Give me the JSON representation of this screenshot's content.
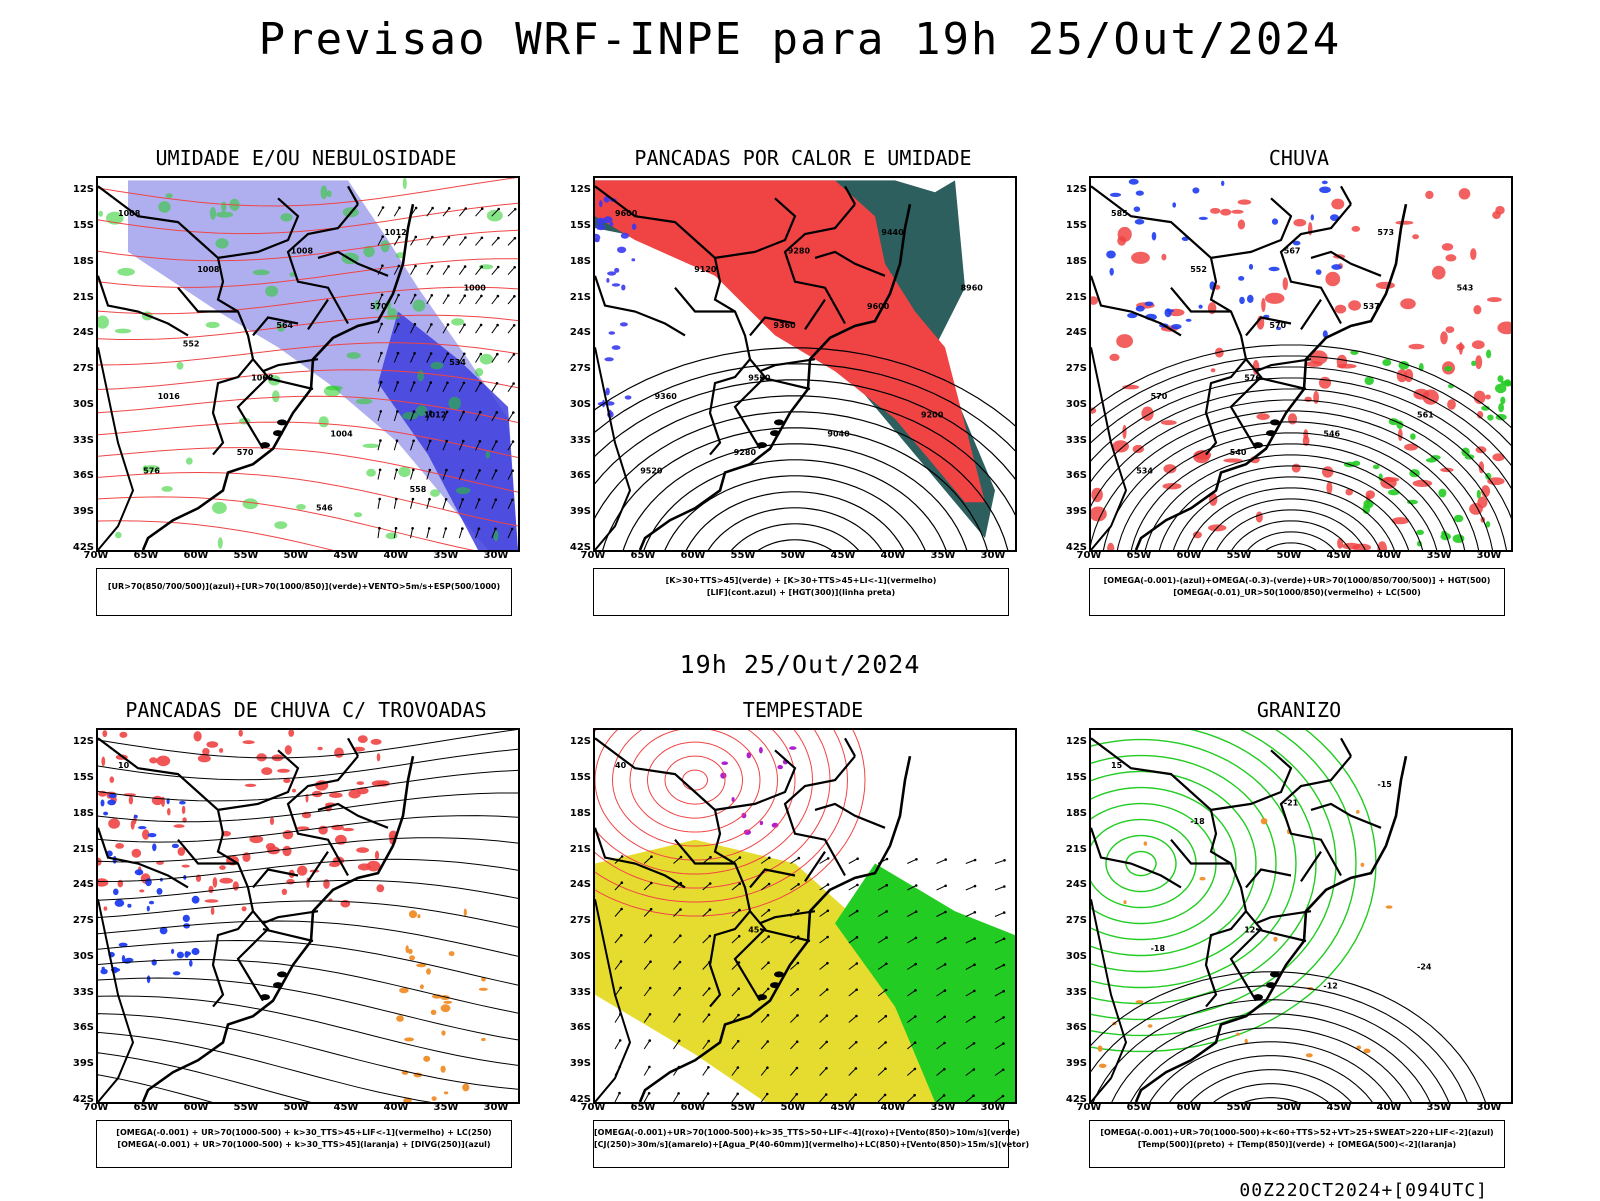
{
  "main_title": "Previsao WRF-INPE  para 19h 25/Out/2024",
  "mid_time": "19h 25/Out/2024",
  "footer": "00Z22OCT2024+[094UTC]",
  "axes": {
    "lat_labels": [
      "12S",
      "15S",
      "18S",
      "21S",
      "24S",
      "27S",
      "30S",
      "33S",
      "36S",
      "39S",
      "42S"
    ],
    "lon_labels": [
      "70W",
      "65W",
      "60W",
      "55W",
      "50W",
      "45W",
      "40W",
      "35W",
      "30W"
    ]
  },
  "panels": [
    {
      "title": "UMIDADE E/OU NEBULOSIDADE",
      "legend_lines": [
        "[UR>70(850/700/500)](azul)+[UR>70(1000/850)](verde)+VENTO>5m/s+ESP(500/1000)"
      ],
      "contour_labels": [
        "1008",
        "1008",
        "1012",
        "1016",
        "1008",
        "1012",
        "1008",
        "1004",
        "1000",
        "570",
        "570",
        "576",
        "564",
        "558",
        "552",
        "546",
        "534"
      ]
    },
    {
      "title": "PANCADAS POR CALOR E UMIDADE",
      "legend_lines": [
        "[K>30+TTS>45](verde) + [K>30+TTS>45+LI<-1](vermelho)",
        "[LIF](cont.azul) + [HGT(300)](linha preta)"
      ],
      "contour_labels": [
        "9600",
        "9520",
        "9440",
        "9360",
        "9280",
        "9200",
        "9120",
        "9040",
        "8960",
        "9280",
        "9600",
        "9520",
        "9360"
      ]
    },
    {
      "title": "CHUVA",
      "legend_lines": [
        "[OMEGA(-0.001)-(azul)+OMEGA(-0.3)-(verde)+UR>70(1000/850/700/500)] + HGT(500)",
        "[OMEGA(-0.01)_UR>50(1000/850)(vermelho) + LC(500)"
      ],
      "contour_labels": [
        "585",
        "576",
        "573",
        "570",
        "567",
        "561",
        "552",
        "546",
        "543",
        "540",
        "537",
        "534",
        "570"
      ]
    },
    {
      "title": "PANCADAS DE CHUVA C/ TROVOADAS",
      "legend_lines": [
        "[OMEGA(-0.001) + UR>70(1000-500) + k>30_TTS>45+LIF<-1](vermelho) + LC(250)",
        "[OMEGA(-0.001) + UR>70(1000-500) + k>30_TTS>45](laranja) + [DIVG(250)](azul)"
      ],
      "contour_labels": [
        "10"
      ]
    },
    {
      "title": "TEMPESTADE",
      "legend_lines": [
        "[OMEGA(-0.001)+UR>70(1000-500)+k>35_TTS>50+LIF<-4](roxo)+[Vento(850)>10m/s](verde)",
        "[CJ(250)>30m/s](amarelo)+[Agua_P(40-60mm)](vermelho)+LC(850)+[Vento(850)>15m/s](vetor)"
      ],
      "contour_labels": [
        "40",
        "45"
      ]
    },
    {
      "title": "GRANIZO",
      "legend_lines": [
        "[OMEGA(-0.001)+UR>70(1000-500)+k<60+TTS>52+VT>25+SWEAT>220+LIF<-2](azul)",
        "[Temp(500)](preto) + [Temp(850)](verde) + [OMEGA(500)<-2](laranja)"
      ],
      "contour_labels": [
        "15",
        "12",
        "-15",
        "-18",
        "-21",
        "-24",
        "-18",
        "-12"
      ]
    }
  ],
  "colors": {
    "blue_light": "#a6a6ee",
    "blue_dark": "#3c3cdc",
    "green": "#22cc22",
    "red": "#f04444",
    "dark_teal": "#2e5f5f",
    "yellow": "#e6dc30",
    "orange": "#f08c28",
    "purple": "#b020d0"
  }
}
